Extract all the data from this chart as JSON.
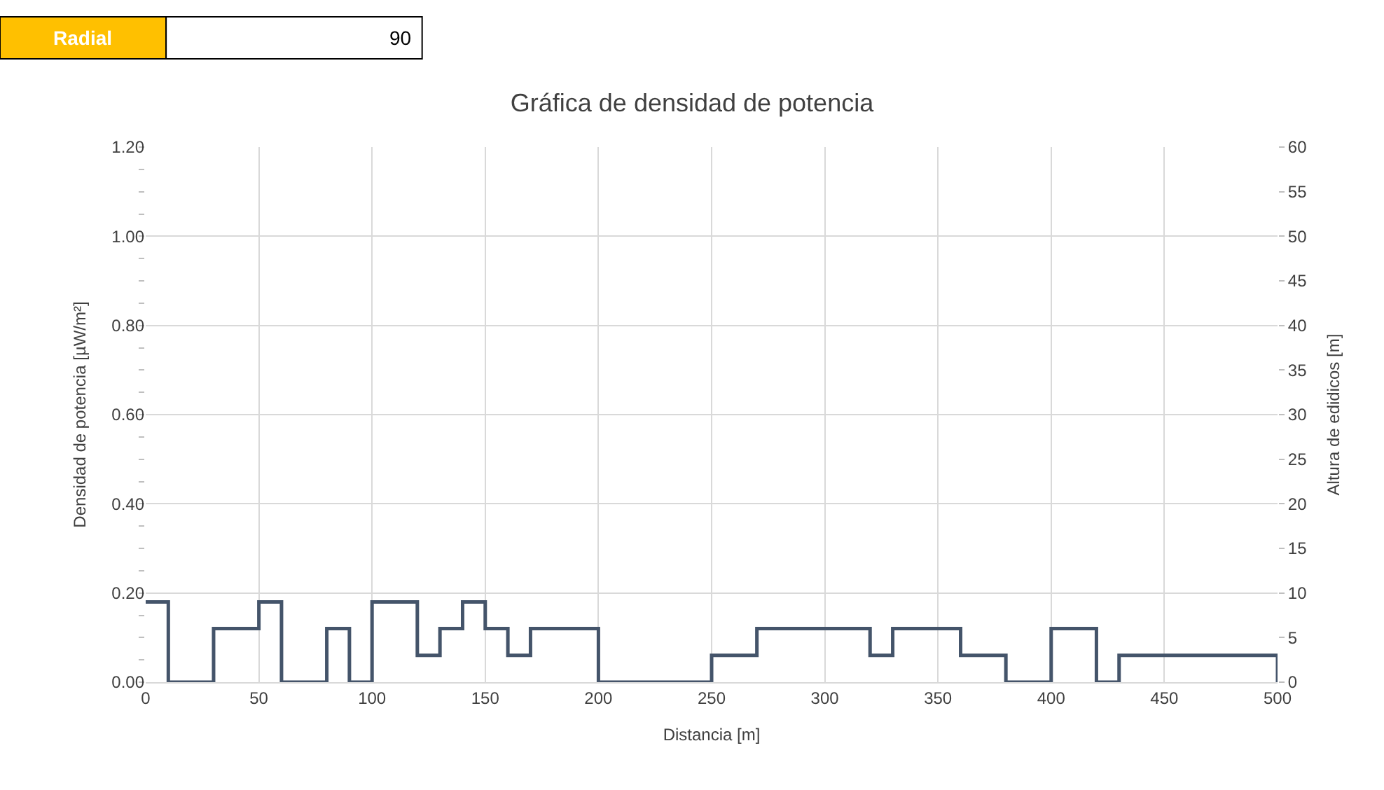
{
  "chart_data": {
    "type": "step",
    "title": "Gráfica de densidad de potencia",
    "xlabel": "Distancia [m]",
    "ylabel": "Densidad de potencia [µW/m²]",
    "y2label": "Altura de edidicos [m]",
    "annotations": [
      "Radial",
      "90"
    ],
    "x": [
      0,
      10,
      30,
      50,
      60,
      80,
      90,
      100,
      120,
      130,
      140,
      150,
      160,
      170,
      200,
      250,
      270,
      320,
      330,
      360,
      380,
      400,
      420,
      430,
      500
    ],
    "series": [
      {
        "color": "#44546a",
        "axis": "y2",
        "values": [
          9,
          0,
          6,
          9,
          0,
          6,
          0,
          9,
          3,
          6,
          9,
          6,
          3,
          6,
          0,
          3,
          6,
          3,
          6,
          3,
          0,
          6,
          0,
          3,
          0
        ]
      }
    ],
    "xlim": [
      0,
      500
    ],
    "xticks": [
      0,
      50,
      100,
      150,
      200,
      250,
      300,
      350,
      400,
      450,
      500
    ],
    "ylim": [
      0,
      1.2
    ],
    "yticks": [
      {
        "value": 0,
        "label": "0.00"
      },
      {
        "value": 0.2,
        "label": "0.20"
      },
      {
        "value": 0.4,
        "label": "0.40"
      },
      {
        "value": 0.6,
        "label": "0.60"
      },
      {
        "value": 0.8,
        "label": "0.80"
      },
      {
        "value": 1.0,
        "label": "1.00"
      },
      {
        "value": 1.2,
        "label": "1.20"
      }
    ],
    "y2lim": [
      0,
      60
    ],
    "y2ticks": [
      0,
      5,
      10,
      15,
      20,
      25,
      30,
      35,
      40,
      45,
      50,
      55,
      60
    ],
    "grid": true,
    "line_style": "solid",
    "marker": "none"
  }
}
